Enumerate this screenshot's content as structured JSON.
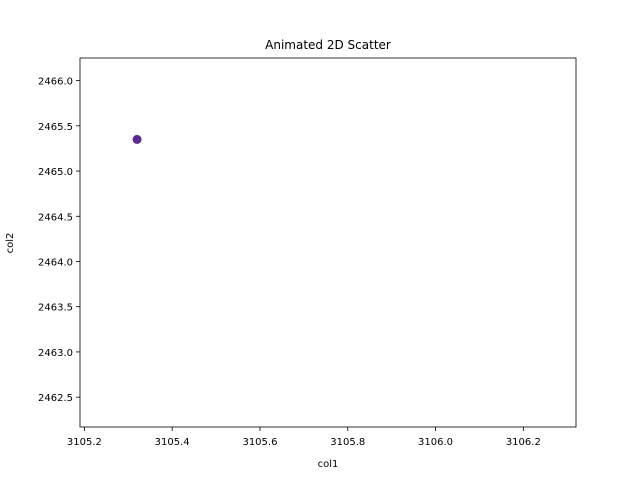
{
  "chart_data": {
    "type": "scatter",
    "title": "Animated 2D Scatter",
    "xlabel": "col1",
    "ylabel": "col2",
    "xlim": [
      3105.19,
      3106.32
    ],
    "ylim": [
      2462.17,
      2466.25
    ],
    "xticks": [
      3105.2,
      3105.4,
      3105.6,
      3105.8,
      3106.0,
      3106.2
    ],
    "xtick_labels": [
      "3105.2",
      "3105.4",
      "3105.6",
      "3105.8",
      "3106.0",
      "3106.2"
    ],
    "yticks": [
      2462.5,
      2463.0,
      2463.5,
      2464.0,
      2464.5,
      2465.0,
      2465.5,
      2466.0
    ],
    "ytick_labels": [
      "2462.5",
      "2463.0",
      "2463.5",
      "2464.0",
      "2464.5",
      "2465.0",
      "2465.5",
      "2466.0"
    ],
    "grid": false,
    "points": [
      {
        "x": 3105.32,
        "y": 2465.35
      }
    ],
    "point_color": "#5b2a8e"
  }
}
